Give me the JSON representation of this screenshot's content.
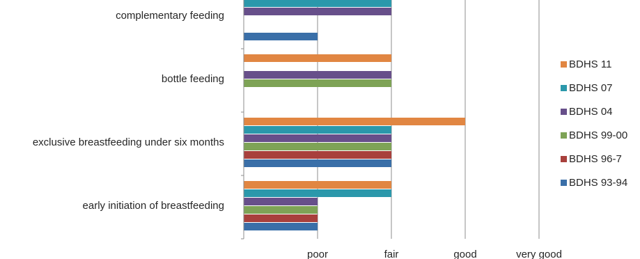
{
  "chart_data": {
    "type": "bar",
    "orientation": "horizontal",
    "categories": [
      "early initiation of breastfeeding",
      "exclusive breastfeeding under six months",
      "bottle feeding",
      "complementary feeding"
    ],
    "x_ticks": [
      "poor",
      "fair",
      "good",
      "very good"
    ],
    "x_values_note_levels": [
      1,
      2,
      3,
      4
    ],
    "series": [
      {
        "name": "BDHS 93-94",
        "color": "#3a6fa8",
        "values": [
          1,
          2,
          null,
          1
        ]
      },
      {
        "name": "BDHS 96-7",
        "color": "#a8403c",
        "values": [
          1,
          2,
          null,
          null
        ]
      },
      {
        "name": "BDHS 99-00",
        "color": "#7ea356",
        "values": [
          1,
          2,
          2,
          null
        ]
      },
      {
        "name": "BDHS 04",
        "color": "#674f8a",
        "values": [
          1,
          2,
          2,
          2
        ]
      },
      {
        "name": "BDHS 07",
        "color": "#2b98ab",
        "values": [
          2,
          2,
          null,
          2
        ]
      },
      {
        "name": "BDHS 11",
        "color": "#e18642",
        "values": [
          2,
          3,
          2,
          null
        ]
      }
    ],
    "xlim": [
      0,
      4
    ],
    "grid": true,
    "legend_position": "right"
  }
}
